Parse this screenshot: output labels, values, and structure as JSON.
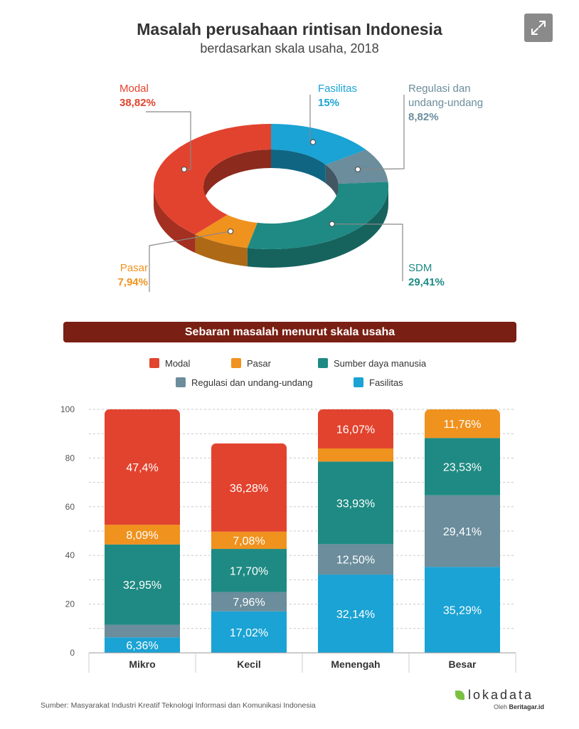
{
  "title": "Masalah perusahaan rintisan Indonesia",
  "subtitle": "berdasarkan skala usaha, 2018",
  "expand_icon": "expand-icon",
  "colors": {
    "modal": "#e2432e",
    "pasar": "#f0921e",
    "sdm": "#1e8a83",
    "regulasi": "#6b8d9c",
    "fasilitas": "#1aa3d4",
    "banner": "#7a1f13"
  },
  "chart_data": [
    {
      "type": "pie",
      "slices": [
        {
          "key": "fasilitas",
          "label": "Fasilitas",
          "value": 15,
          "display": "15%"
        },
        {
          "key": "regulasi",
          "label": "Regulasi dan undang-undang",
          "label_lines": [
            "Regulasi dan",
            "undang-undang"
          ],
          "value": 8.82,
          "display": "8,82%"
        },
        {
          "key": "sdm",
          "label": "SDM",
          "value": 29.41,
          "display": "29,41%"
        },
        {
          "key": "pasar",
          "label": "Pasar",
          "value": 7.94,
          "display": "7,94%"
        },
        {
          "key": "modal",
          "label": "Modal",
          "value": 38.82,
          "display": "38,82%"
        }
      ]
    },
    {
      "type": "bar",
      "stacked": true,
      "title": "Sebaran masalah menurut skala usaha",
      "categories": [
        "Mikro",
        "Kecil",
        "Menengah",
        "Besar"
      ],
      "ylim": [
        0,
        100
      ],
      "yticks": [
        0,
        20,
        40,
        60,
        80,
        100
      ],
      "grid": true,
      "legend_position": "top",
      "series": [
        {
          "key": "fasilitas",
          "name": "Fasilitas",
          "values": [
            6.36,
            17.02,
            32.14,
            35.29
          ],
          "labels": [
            "6,36%",
            "17,02%",
            "32,14%",
            "35,29%"
          ]
        },
        {
          "key": "regulasi",
          "name": "Regulasi dan undang-undang",
          "values": [
            5.2,
            7.96,
            12.5,
            29.41
          ],
          "labels": [
            "",
            "7,96%",
            "12,50%",
            "29,41%"
          ]
        },
        {
          "key": "sdm",
          "name": "Sumber daya manusia",
          "values": [
            32.95,
            17.7,
            33.93,
            23.53
          ],
          "labels": [
            "32,95%",
            "17,70%",
            "33,93%",
            "23,53%"
          ]
        },
        {
          "key": "pasar",
          "name": "Pasar",
          "values": [
            8.09,
            7.08,
            5.36,
            11.76
          ],
          "labels": [
            "8,09%",
            "7,08%",
            "",
            "11,76%"
          ]
        },
        {
          "key": "modal",
          "name": "Modal",
          "values": [
            47.4,
            36.28,
            16.07,
            0
          ],
          "labels": [
            "47,4%",
            "36,28%",
            "16,07%",
            ""
          ]
        }
      ]
    }
  ],
  "legend": [
    {
      "key": "modal",
      "label": "Modal"
    },
    {
      "key": "pasar",
      "label": "Pasar"
    },
    {
      "key": "sdm",
      "label": "Sumber daya manusia"
    },
    {
      "key": "regulasi",
      "label": "Regulasi dan undang-undang"
    },
    {
      "key": "fasilitas",
      "label": "Fasilitas"
    }
  ],
  "source": "Sumber: Masyarakat Industri Kreatif Teknologi Informasi dan Komunikasi Indonesia",
  "brand": {
    "name": "lokadata",
    "by_prefix": "Oleh",
    "by_name": "Beritagar.id",
    "logo_icon": "leaf-icon"
  }
}
